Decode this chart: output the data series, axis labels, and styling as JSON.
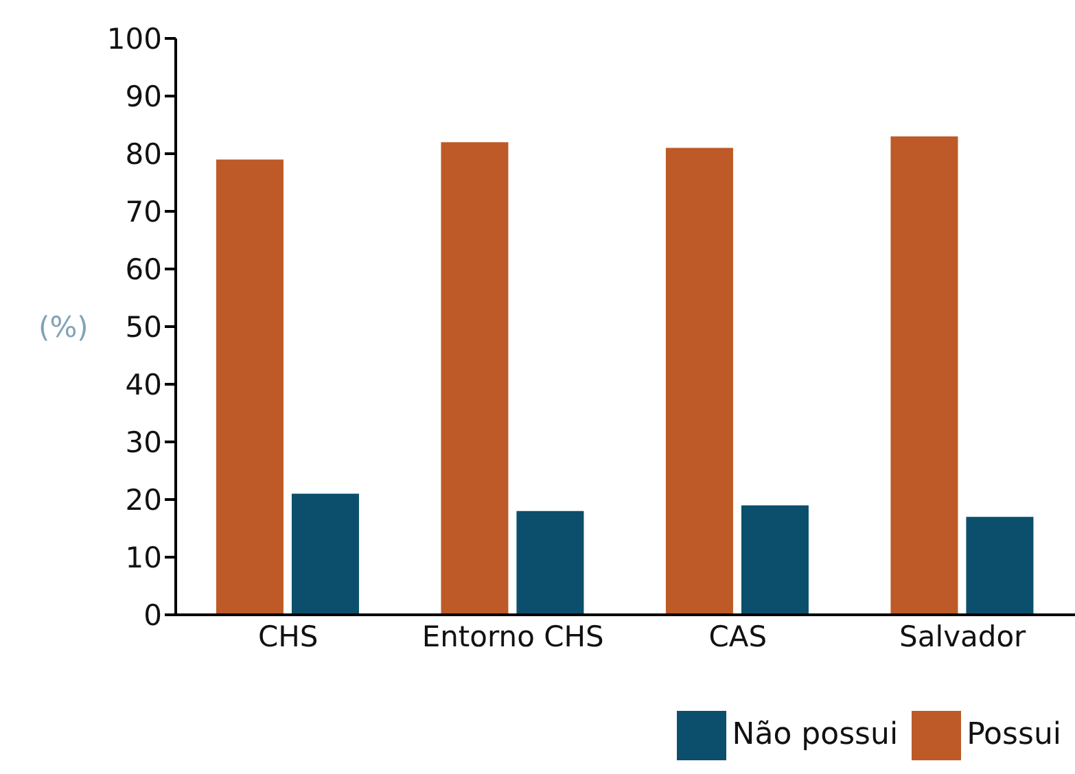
{
  "chart_data": {
    "type": "bar",
    "ylabel": "(%)",
    "categories": [
      "CHS",
      "Entorno CHS",
      "CAS",
      "Salvador"
    ],
    "series": [
      {
        "name": "Possui",
        "color": "#bd5a28",
        "values": [
          79,
          82,
          81,
          83
        ]
      },
      {
        "name": "Não possui",
        "color": "#0b4f6c",
        "values": [
          21,
          18,
          19,
          17
        ]
      }
    ],
    "ylim": [
      0,
      100
    ],
    "yticks": [
      0,
      10,
      20,
      30,
      40,
      50,
      60,
      70,
      80,
      90,
      100
    ],
    "grid": false,
    "legend": "bottom right"
  }
}
